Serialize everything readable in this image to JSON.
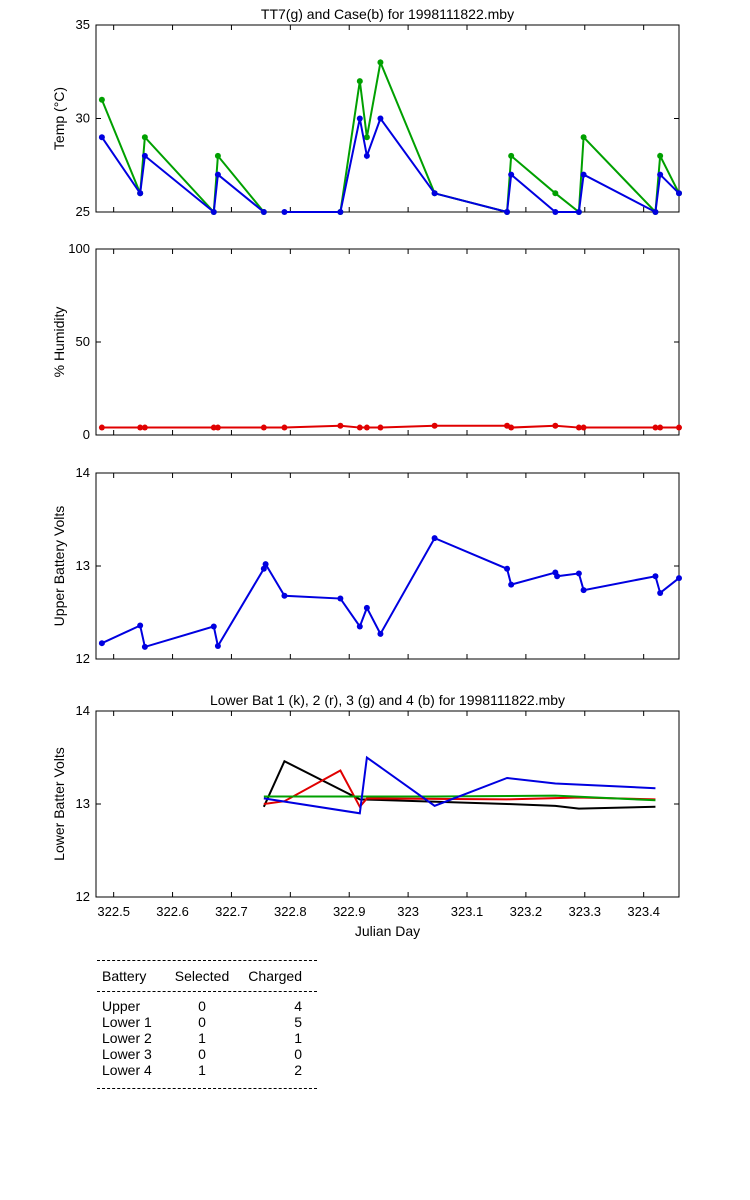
{
  "chart_data": [
    {
      "type": "line",
      "title": "TT7(g) and Case(b) for 1998111822.mby",
      "xlabel": "",
      "ylabel": "Temp  (°C)",
      "xlim": [
        322.47,
        323.46
      ],
      "ylim": [
        25,
        35
      ],
      "yticks": [
        "25",
        "30",
        "35"
      ],
      "series": [
        {
          "name": "TT7",
          "color": "#00a000",
          "x": [
            322.48,
            322.545,
            322.553,
            322.67,
            322.677,
            322.755,
            null,
            322.885,
            322.918,
            322.93,
            322.953,
            323.045,
            323.168,
            323.175,
            323.25,
            323.29,
            323.298,
            323.42,
            323.428,
            323.46
          ],
          "y": [
            31,
            26,
            29,
            25,
            28,
            25,
            null,
            25,
            32,
            29,
            33,
            26,
            25,
            28,
            26,
            25,
            29,
            25,
            28,
            26
          ]
        },
        {
          "name": "Case",
          "color": "#0000e0",
          "x": [
            322.48,
            322.545,
            322.553,
            322.67,
            322.677,
            322.755,
            null,
            322.79,
            322.885,
            322.918,
            322.93,
            322.953,
            323.045,
            323.168,
            323.175,
            323.25,
            323.29,
            323.298,
            323.42,
            323.428,
            323.46
          ],
          "y": [
            29,
            26,
            28,
            25,
            27,
            25,
            null,
            25,
            25,
            30,
            28,
            30,
            26,
            25,
            27,
            25,
            25,
            27,
            25,
            27,
            26
          ]
        }
      ]
    },
    {
      "type": "line",
      "title": "",
      "ylabel": "% Humidity",
      "xlim": [
        322.47,
        323.46
      ],
      "ylim": [
        0,
        100
      ],
      "yticks": [
        "0",
        "50",
        "100"
      ],
      "series": [
        {
          "name": "Humidity",
          "color": "#e00000",
          "x": [
            322.48,
            322.545,
            322.553,
            322.67,
            322.677,
            322.755,
            322.79,
            322.885,
            322.918,
            322.93,
            322.953,
            323.045,
            323.168,
            323.175,
            323.25,
            323.29,
            323.298,
            323.42,
            323.428,
            323.46
          ],
          "y": [
            4,
            4,
            4,
            4,
            4,
            4,
            4,
            5,
            4,
            4,
            4,
            5,
            5,
            4,
            5,
            4,
            4,
            4,
            4,
            4
          ]
        }
      ]
    },
    {
      "type": "line",
      "title": "",
      "ylabel": "Upper Battery Volts",
      "xlim": [
        322.47,
        323.46
      ],
      "ylim": [
        12,
        14
      ],
      "yticks": [
        "12",
        "13",
        "14"
      ],
      "series": [
        {
          "name": "Upper Battery",
          "color": "#0000e0",
          "x": [
            322.48,
            322.545,
            322.553,
            322.67,
            322.677,
            322.755,
            322.758,
            322.79,
            322.885,
            322.918,
            322.93,
            322.953,
            323.045,
            323.168,
            323.175,
            323.25,
            323.253,
            323.29,
            323.298,
            323.42,
            323.428,
            323.46
          ],
          "y": [
            12.17,
            12.36,
            12.13,
            12.35,
            12.14,
            12.97,
            13.02,
            12.68,
            12.65,
            12.35,
            12.55,
            12.27,
            13.3,
            12.97,
            12.8,
            12.93,
            12.89,
            12.92,
            12.74,
            12.89,
            12.71,
            12.87
          ]
        }
      ]
    },
    {
      "type": "line",
      "title": "Lower Bat 1 (k), 2 (r), 3 (g) and 4 (b) for 1998111822.mby",
      "xlabel": "Julian Day",
      "ylabel": "Lower Batter Volts",
      "xlim": [
        322.47,
        323.46
      ],
      "ylim": [
        12,
        14
      ],
      "yticks": [
        "12",
        "13",
        "14"
      ],
      "xticks": [
        "322.5",
        "322.6",
        "322.7",
        "322.8",
        "322.9",
        "323",
        "323.1",
        "323.2",
        "323.3",
        "323.4"
      ],
      "series": [
        {
          "name": "1 (k)",
          "color": "#000000",
          "x": [
            322.755,
            322.79,
            322.918,
            323.168,
            323.25,
            323.29,
            323.42
          ],
          "y": [
            12.97,
            13.46,
            13.05,
            13.0,
            12.98,
            12.95,
            12.97
          ]
        },
        {
          "name": "2 (r)",
          "color": "#e00000",
          "x": [
            322.755,
            322.79,
            322.885,
            322.918,
            322.93,
            323.168,
            323.29,
            323.42
          ],
          "y": [
            13.0,
            13.03,
            13.36,
            12.97,
            13.06,
            13.05,
            13.07,
            13.05
          ]
        },
        {
          "name": "3 (g)",
          "color": "#00a000",
          "x": [
            322.755,
            323.045,
            323.25,
            323.42
          ],
          "y": [
            13.08,
            13.08,
            13.09,
            13.04
          ]
        },
        {
          "name": "4 (b)",
          "color": "#0000e0",
          "x": [
            322.755,
            322.918,
            322.93,
            323.045,
            323.168,
            323.25,
            323.42
          ],
          "y": [
            13.06,
            12.9,
            13.5,
            12.98,
            13.28,
            13.22,
            13.17
          ]
        }
      ]
    }
  ],
  "table": {
    "headers": [
      "Battery",
      "Selected",
      "Charged"
    ],
    "rows": [
      [
        "Upper",
        "0",
        "4"
      ],
      [
        "Lower 1",
        "0",
        "5"
      ],
      [
        "Lower 2",
        "1",
        "1"
      ],
      [
        "Lower 3",
        "0",
        "0"
      ],
      [
        "Lower 4",
        "1",
        "2"
      ]
    ]
  }
}
